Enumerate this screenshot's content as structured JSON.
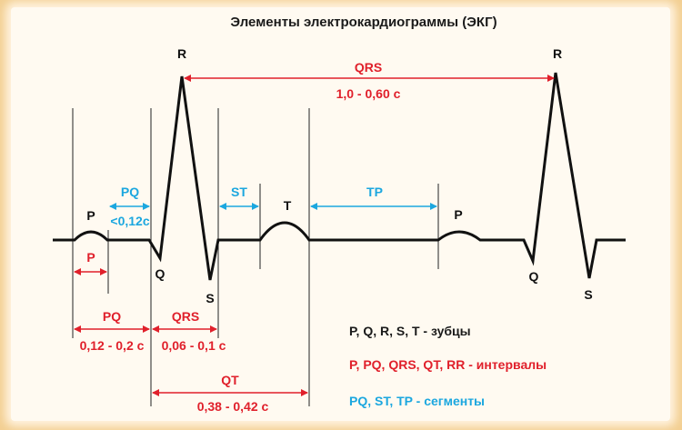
{
  "title": "Элементы электрокардиограммы (ЭКГ)",
  "waves": {
    "p1": "P",
    "q1": "Q",
    "r1": "R",
    "s1": "S",
    "t1": "T",
    "p2": "P",
    "q2": "Q",
    "r2": "R",
    "s2": "S"
  },
  "intervals": {
    "qrs_rr_name": "QRS",
    "qrs_rr_value": "1,0 - 0,60 с",
    "p_name": "P",
    "pq_name": "PQ",
    "pq_value": "0,12 - 0,2 с",
    "qrs_name": "QRS",
    "qrs_value": "0,06 - 0,1 с",
    "qt_name": "QT",
    "qt_value": "0,38 - 0,42 с"
  },
  "segments": {
    "pq_name": "PQ",
    "pq_value": "<0,12с",
    "st_name": "ST",
    "tp_name": "TP"
  },
  "legend": {
    "waves": "P, Q, R, S, T - зубцы",
    "intervals": "P, PQ, QRS, QT, RR - интервалы",
    "segments": "PQ, ST, TP - сегменты"
  },
  "colors": {
    "background": "#f3cf92",
    "trace": "#111111",
    "interval": "#e0202b",
    "segment": "#1ba7df"
  }
}
